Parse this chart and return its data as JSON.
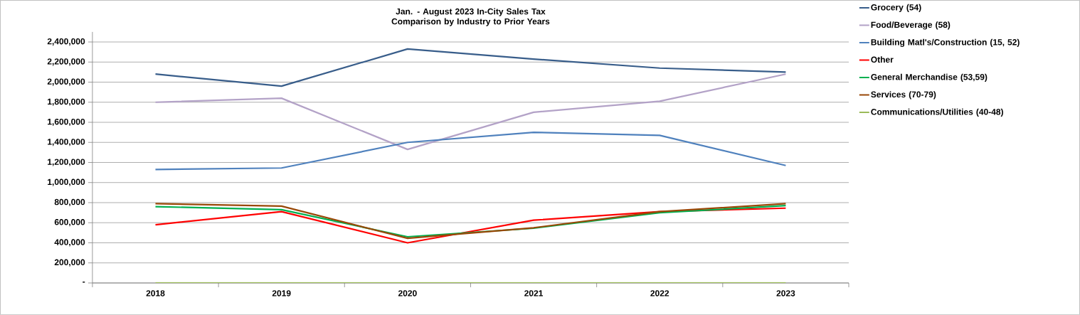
{
  "chart_data": {
    "type": "line",
    "title": "Jan. - August 2023 In-City Sales Tax Comparison by Industry to Prior Years",
    "categories": [
      "2018",
      "2019",
      "2020",
      "2021",
      "2022",
      "2023"
    ],
    "series": [
      {
        "name": "Grocery (54)",
        "color": "#385d8a",
        "values": [
          2080000,
          1960000,
          2330000,
          2230000,
          2140000,
          2100000
        ]
      },
      {
        "name": "Food/Beverage (58)",
        "color": "#b3a2c7",
        "values": [
          1800000,
          1840000,
          1330000,
          1700000,
          1810000,
          2080000
        ]
      },
      {
        "name": "Building Matl's/Construction (15, 52)",
        "color": "#4f81bd",
        "values": [
          1130000,
          1145000,
          1400000,
          1500000,
          1470000,
          1170000
        ]
      },
      {
        "name": "Other",
        "color": "#ff0000",
        "values": [
          580000,
          710000,
          400000,
          625000,
          710000,
          745000
        ]
      },
      {
        "name": "General Merchandise (53,59)",
        "color": "#00b050",
        "values": [
          760000,
          730000,
          460000,
          545000,
          700000,
          770000
        ]
      },
      {
        "name": "Services (70-79)",
        "color": "#984807",
        "values": [
          790000,
          765000,
          445000,
          550000,
          710000,
          790000
        ]
      },
      {
        "name": "Communications/Utilities (40-48)",
        "color": "#9bbb59",
        "values": [
          0,
          0,
          0,
          0,
          0,
          0
        ]
      }
    ],
    "ylim": [
      0,
      2500000
    ],
    "yticks": [
      {
        "value": 0,
        "label": "-"
      },
      {
        "value": 200000,
        "label": "200,000"
      },
      {
        "value": 400000,
        "label": "400,000"
      },
      {
        "value": 600000,
        "label": "600,000"
      },
      {
        "value": 800000,
        "label": "800,000"
      },
      {
        "value": 1000000,
        "label": "1,000,000"
      },
      {
        "value": 1200000,
        "label": "1,200,000"
      },
      {
        "value": 1400000,
        "label": "1,400,000"
      },
      {
        "value": 1600000,
        "label": "1,600,000"
      },
      {
        "value": 1800000,
        "label": "1,800,000"
      },
      {
        "value": 2000000,
        "label": "2,000,000"
      },
      {
        "value": 2200000,
        "label": "2,200,000"
      },
      {
        "value": 2400000,
        "label": "2,400,000"
      }
    ],
    "grid": "y",
    "legend": "right"
  }
}
